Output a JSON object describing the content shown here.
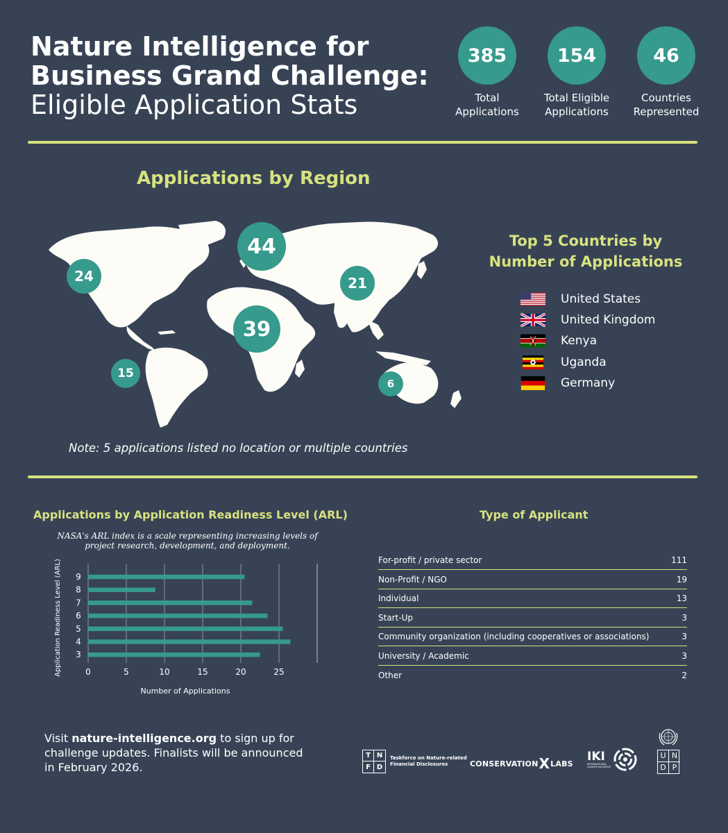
{
  "header": {
    "title_line1": "Nature Intelligence for",
    "title_line2": "Business Grand Challenge:",
    "title_line3": "Eligible Application Stats",
    "stats": [
      {
        "value": "385",
        "label_line1": "Total",
        "label_line2": "Applications"
      },
      {
        "value": "154",
        "label_line1": "Total Eligible",
        "label_line2": "Applications"
      },
      {
        "value": "46",
        "label_line1": "Countries",
        "label_line2": "Represented"
      }
    ]
  },
  "region": {
    "title": "Applications by Region",
    "bubbles": [
      {
        "value": "24"
      },
      {
        "value": "44"
      },
      {
        "value": "21"
      },
      {
        "value": "39"
      },
      {
        "value": "15"
      },
      {
        "value": "6"
      }
    ],
    "note": "Note: 5 applications listed no location or multiple countries"
  },
  "top_countries": {
    "title_line1": "Top 5 Countries by",
    "title_line2": "Number of Applications",
    "items": [
      {
        "name": "United States",
        "flag": "us-flag"
      },
      {
        "name": "United Kingdom",
        "flag": "uk-flag"
      },
      {
        "name": "Kenya",
        "flag": "kenya-flag"
      },
      {
        "name": "Uganda",
        "flag": "uganda-flag"
      },
      {
        "name": "Germany",
        "flag": "germany-flag"
      }
    ]
  },
  "applicant_type": {
    "title": "Type of Applicant",
    "rows": [
      {
        "label": "For-profit / private sector",
        "value": "111"
      },
      {
        "label": "Non-Profit / NGO",
        "value": "19"
      },
      {
        "label": "Individual",
        "value": "13"
      },
      {
        "label": "Start-Up",
        "value": "3"
      },
      {
        "label": "Community organization (including cooperatives or associations)",
        "value": "3"
      },
      {
        "label": "University / Academic",
        "value": "3"
      },
      {
        "label": "Other",
        "value": "2"
      }
    ]
  },
  "chart_data": {
    "type": "bar",
    "orientation": "horizontal",
    "title": "Applications by Application Readiness Level (ARL)",
    "subtitle_line1": "NASA's ARL index is a scale representing increasing levels of",
    "subtitle_line2": "project research, development, and deployment.",
    "xlabel": "Number of Applications",
    "ylabel": "Application Readiness Level (ARL)",
    "categories": [
      "9",
      "8",
      "7",
      "6",
      "5",
      "4",
      "3"
    ],
    "values": [
      20.5,
      8.8,
      21.5,
      23.5,
      25.5,
      26.5,
      22.5
    ],
    "xlim": [
      0,
      30
    ],
    "xticks": [
      "0",
      "5",
      "10",
      "15",
      "20",
      "25"
    ],
    "grid": true,
    "bar_color": "#369a8c"
  },
  "footer": {
    "text_prefix": "Visit ",
    "link": "nature-intelligence.org",
    "text_suffix_line1": " to sign up for",
    "line2": "challenge updates. Finalists will be announced",
    "line3": "in February 2026."
  },
  "logos": {
    "tnfd_letters": [
      "T",
      "N",
      "F",
      "D"
    ],
    "tnfd_line1": "Taskforce on Nature-related",
    "tnfd_line2": "Financial Disclosures",
    "cxl_prefix": "CONSERVATION",
    "cxl_x": "X",
    "cxl_suffix": "LABS",
    "iki": "IKI",
    "iki_small_line1": "INTERNATIONAL",
    "iki_small_line2": "CLIMATE INITIATIVE",
    "undp_letters": [
      "U",
      "N",
      "D",
      "P"
    ]
  },
  "colors": {
    "background": "#374355",
    "accent_yellow": "#d8e27f",
    "teal": "#369a8c",
    "map": "#fdfcf6"
  }
}
